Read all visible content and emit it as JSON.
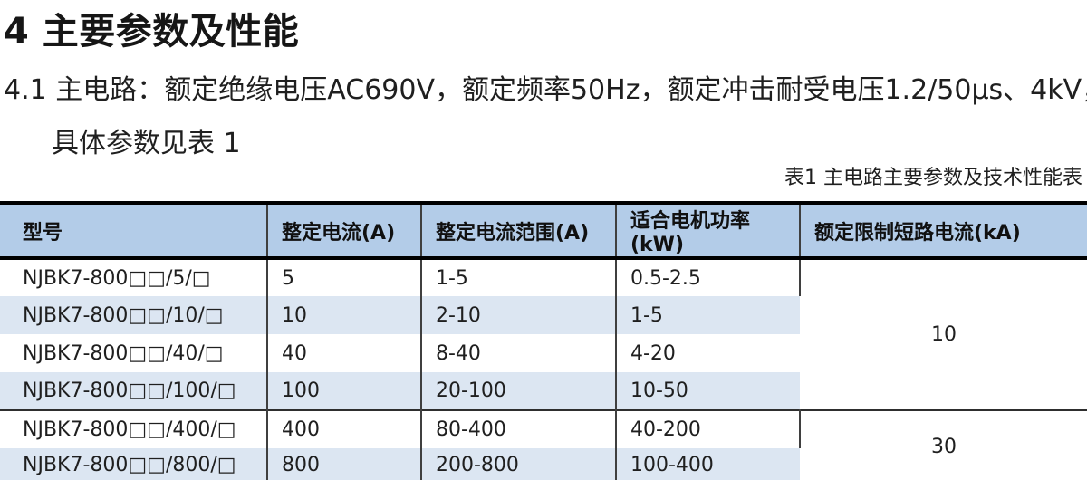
{
  "page": {
    "title": "4 主要参数及性能",
    "paragraph_line1": "4.1 主电路：额定绝缘电压AC690V，额定频率50Hz，额定冲击耐受电压1.2/50μs、4kV，",
    "paragraph_line2": "具体参数见表 1",
    "table_caption": "表1 主电路主要参数及技术性能表"
  },
  "colors": {
    "header_bg": "#b3cce8",
    "row_alt_bg": "#dce6f2",
    "text": "#1f1f1f"
  },
  "table": {
    "headers": [
      "型号",
      "整定电流(A)",
      "整定电流范围(A)",
      "适合电机功率(kW)",
      "额定限制短路电流(kA)"
    ],
    "groups": [
      {
        "limit_current": "10",
        "rows": [
          {
            "model": "NJBK7-800□□/5/□",
            "current": "5",
            "range": "1-5",
            "power": "0.5-2.5"
          },
          {
            "model": "NJBK7-800□□/10/□",
            "current": "10",
            "range": "2-10",
            "power": "1-5"
          },
          {
            "model": "NJBK7-800□□/40/□",
            "current": "40",
            "range": "8-40",
            "power": "4-20"
          },
          {
            "model": "NJBK7-800□□/100/□",
            "current": "100",
            "range": "20-100",
            "power": "10-50"
          }
        ]
      },
      {
        "limit_current": "30",
        "rows": [
          {
            "model": "NJBK7-800□□/400/□",
            "current": "400",
            "range": "80-400",
            "power": "40-200"
          },
          {
            "model": "NJBK7-800□□/800/□",
            "current": "800",
            "range": "200-800",
            "power": "100-400"
          }
        ]
      }
    ]
  }
}
